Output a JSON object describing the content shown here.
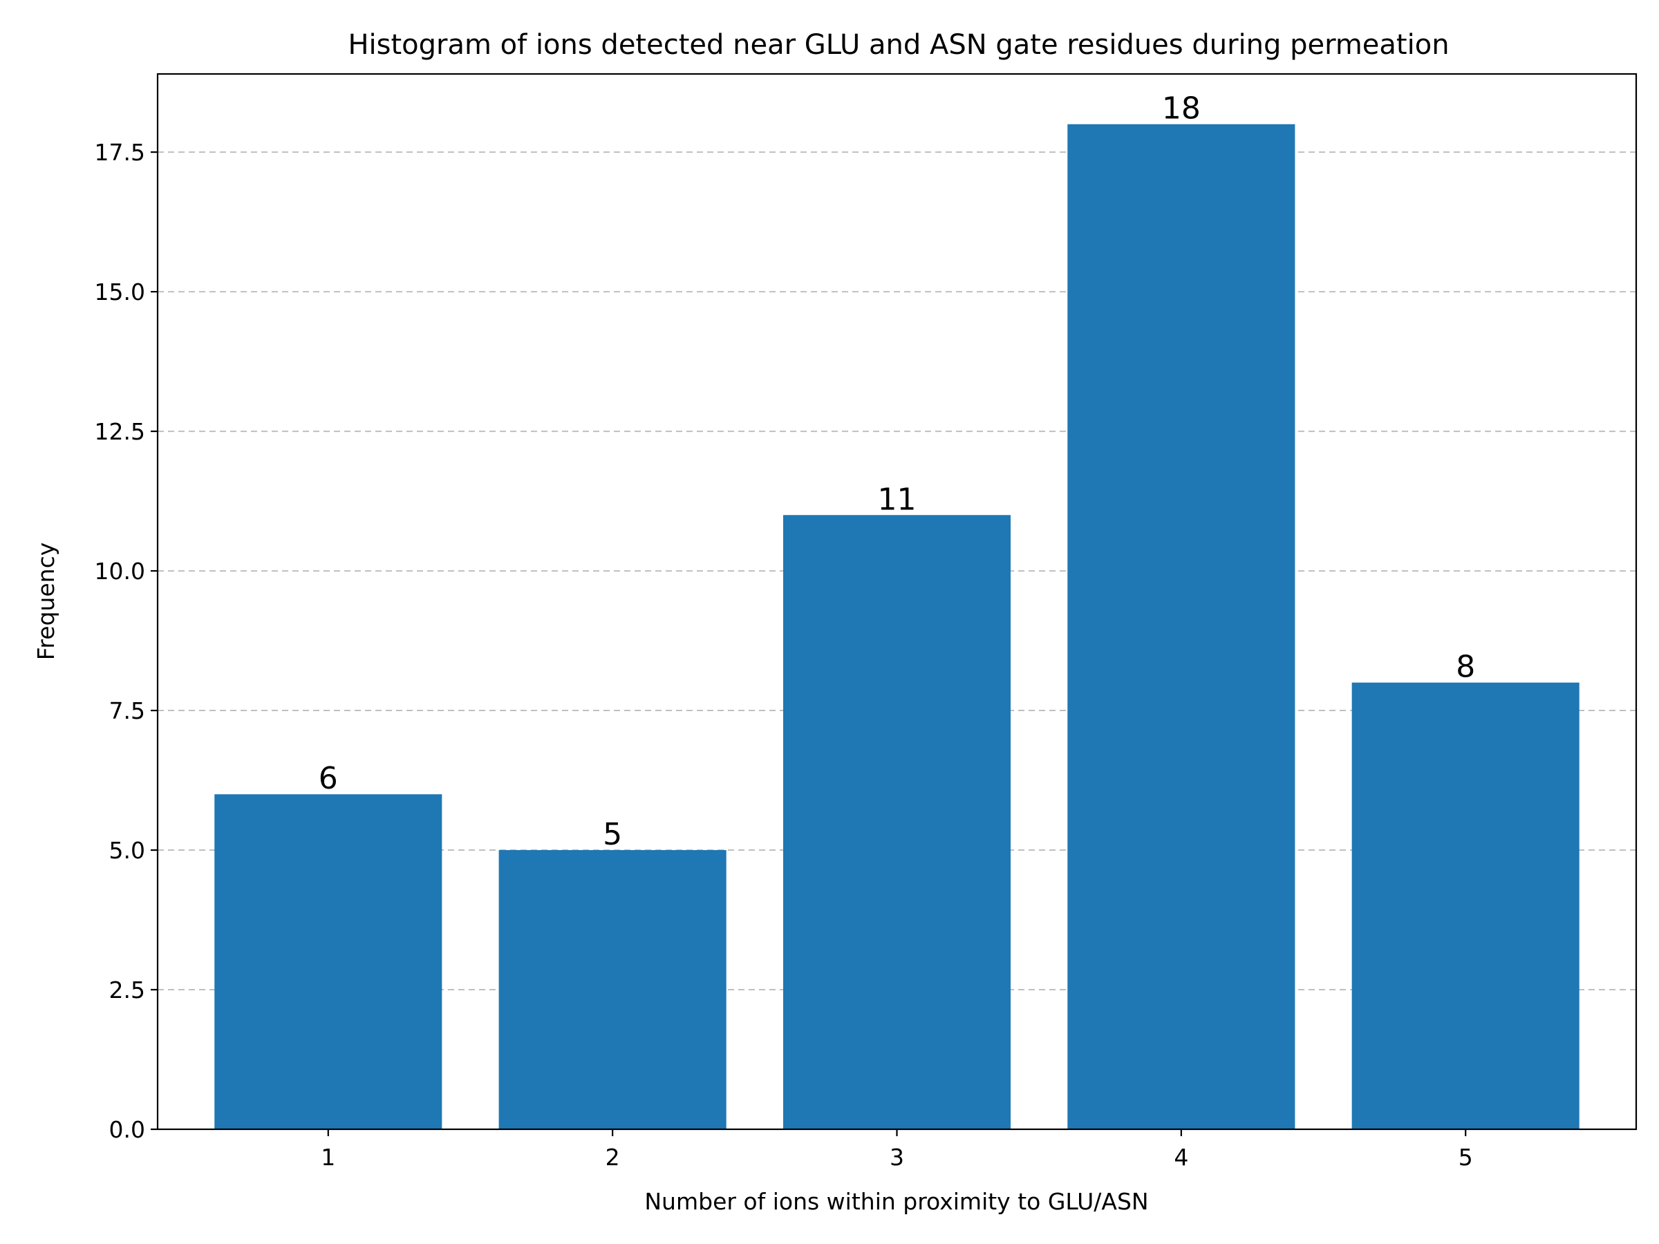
{
  "chart_data": {
    "type": "bar",
    "title": "Histogram of ions detected near GLU and ASN gate residues during permeation",
    "xlabel": "Number of ions within proximity to GLU/ASN",
    "ylabel": "Frequency",
    "categories": [
      "1",
      "2",
      "3",
      "4",
      "5"
    ],
    "values": [
      6,
      5,
      11,
      18,
      8
    ],
    "data_labels": [
      "6",
      "5",
      "11",
      "18",
      "8"
    ],
    "ylim": [
      0,
      18.9
    ],
    "yticks": [
      0,
      2.5,
      5,
      7.5,
      10,
      12.5,
      15,
      17.5
    ],
    "ytick_labels": [
      "0.0",
      "2.5",
      "5.0",
      "7.5",
      "10.0",
      "12.5",
      "15.0",
      "17.5"
    ],
    "grid": "y-dashed",
    "legend": "none",
    "bar_color": "#1f77b4"
  }
}
